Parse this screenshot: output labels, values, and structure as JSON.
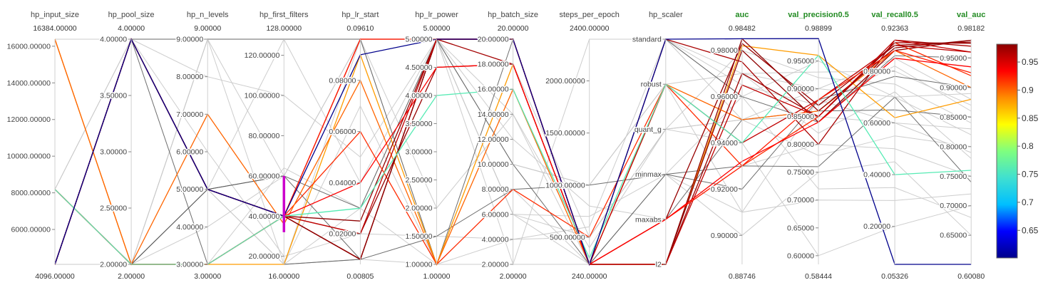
{
  "colors": {
    "metric_header": "#228b22",
    "param_header": "#444444",
    "gray_line": "#c8c8c8",
    "dark_line": "#555555",
    "brush": "#cc00cc"
  },
  "chart_data": {
    "type": "parallel_coordinates",
    "axes": [
      {
        "key": "hp_input_size",
        "label": "hp_input_size",
        "kind": "param",
        "min": 4096,
        "max": 16384,
        "top_label": "16384.00000",
        "bottom_label": "4096.00000",
        "ticks": [
          {
            "v": 6000,
            "t": "6000.00000"
          },
          {
            "v": 8000,
            "t": "8000.00000"
          },
          {
            "v": 10000,
            "t": "10000.00000"
          },
          {
            "v": 12000,
            "t": "12000.00000"
          },
          {
            "v": 14000,
            "t": "14000.00000"
          },
          {
            "v": 16000,
            "t": "16000.00000"
          }
        ]
      },
      {
        "key": "hp_pool_size",
        "label": "hp_pool_size",
        "kind": "param",
        "min": 2,
        "max": 4,
        "top_label": "4.00000",
        "bottom_label": "2.00000",
        "ticks": [
          {
            "v": 2,
            "t": "2.00000"
          },
          {
            "v": 2.5,
            "t": "2.50000"
          },
          {
            "v": 3,
            "t": "3.00000"
          },
          {
            "v": 3.5,
            "t": "3.50000"
          },
          {
            "v": 4,
            "t": "4.00000"
          }
        ]
      },
      {
        "key": "hp_n_levels",
        "label": "hp_n_levels",
        "kind": "param",
        "min": 3,
        "max": 9,
        "top_label": "9.00000",
        "bottom_label": "3.00000",
        "ticks": [
          {
            "v": 3,
            "t": "3.00000"
          },
          {
            "v": 4,
            "t": "4.00000"
          },
          {
            "v": 5,
            "t": "5.00000"
          },
          {
            "v": 6,
            "t": "6.00000"
          },
          {
            "v": 7,
            "t": "7.00000"
          },
          {
            "v": 8,
            "t": "8.00000"
          },
          {
            "v": 9,
            "t": "9.00000"
          }
        ]
      },
      {
        "key": "hp_first_filters",
        "label": "hp_first_filters",
        "kind": "param",
        "min": 16,
        "max": 128,
        "top_label": "128.00000",
        "bottom_label": "16.00000",
        "ticks": [
          {
            "v": 20,
            "t": "20.00000"
          },
          {
            "v": 40,
            "t": "40.00000"
          },
          {
            "v": 60,
            "t": "60.00000"
          },
          {
            "v": 80,
            "t": "80.00000"
          },
          {
            "v": 100,
            "t": "100.00000"
          },
          {
            "v": 120,
            "t": "120.00000"
          }
        ]
      },
      {
        "key": "hp_lr_start",
        "label": "hp_lr_start",
        "kind": "param",
        "min": 0.00805,
        "max": 0.0961,
        "top_label": "0.09610",
        "bottom_label": "0.00805",
        "ticks": [
          {
            "v": 0.02,
            "t": "0.02000"
          },
          {
            "v": 0.04,
            "t": "0.04000"
          },
          {
            "v": 0.06,
            "t": "0.06000"
          },
          {
            "v": 0.08,
            "t": "0.08000"
          }
        ]
      },
      {
        "key": "hp_lr_power",
        "label": "hp_lr_power",
        "kind": "param",
        "min": 1,
        "max": 5,
        "top_label": "5.00000",
        "bottom_label": "1.00000",
        "ticks": [
          {
            "v": 1,
            "t": "1.00000"
          },
          {
            "v": 1.5,
            "t": "1.50000"
          },
          {
            "v": 2,
            "t": "2.00000"
          },
          {
            "v": 2.5,
            "t": "2.50000"
          },
          {
            "v": 3,
            "t": "3.00000"
          },
          {
            "v": 3.5,
            "t": "3.50000"
          },
          {
            "v": 4,
            "t": "4.00000"
          },
          {
            "v": 4.5,
            "t": "4.50000"
          },
          {
            "v": 5,
            "t": "5.00000"
          }
        ]
      },
      {
        "key": "hp_batch_size",
        "label": "hp_batch_size",
        "kind": "param",
        "min": 2,
        "max": 20,
        "top_label": "20.00000",
        "bottom_label": "2.00000",
        "ticks": [
          {
            "v": 2,
            "t": "2.00000"
          },
          {
            "v": 4,
            "t": "4.00000"
          },
          {
            "v": 6,
            "t": "6.00000"
          },
          {
            "v": 8,
            "t": "8.00000"
          },
          {
            "v": 10,
            "t": "10.00000"
          },
          {
            "v": 12,
            "t": "12.00000"
          },
          {
            "v": 14,
            "t": "14.00000"
          },
          {
            "v": 16,
            "t": "16.00000"
          },
          {
            "v": 18,
            "t": "18.00000"
          },
          {
            "v": 20,
            "t": "20.00000"
          }
        ]
      },
      {
        "key": "steps_per_epoch",
        "label": "steps_per_epoch",
        "kind": "param",
        "min": 240,
        "max": 2400,
        "top_label": "2400.00000",
        "bottom_label": "240.00000",
        "ticks": [
          {
            "v": 500,
            "t": "500.00000"
          },
          {
            "v": 1000,
            "t": "1000.00000"
          },
          {
            "v": 1500,
            "t": "1500.00000"
          },
          {
            "v": 2000,
            "t": "2000.00000"
          }
        ]
      },
      {
        "key": "hp_scaler",
        "label": "hp_scaler",
        "kind": "category",
        "min": 0,
        "max": 5,
        "top_label": "",
        "bottom_label": "",
        "ticks": [
          {
            "v": 0,
            "t": "l2"
          },
          {
            "v": 1,
            "t": "maxabs"
          },
          {
            "v": 2,
            "t": "minmax"
          },
          {
            "v": 3,
            "t": "quant_g"
          },
          {
            "v": 4,
            "t": "robust"
          },
          {
            "v": 5,
            "t": "standard"
          }
        ]
      },
      {
        "key": "auc",
        "label": "auc",
        "kind": "metric",
        "min": 0.88746,
        "max": 0.98482,
        "top_label": "0.98482",
        "bottom_label": "0.88746",
        "ticks": [
          {
            "v": 0.9,
            "t": "0.90000"
          },
          {
            "v": 0.92,
            "t": "0.92000"
          },
          {
            "v": 0.94,
            "t": "0.94000"
          },
          {
            "v": 0.96,
            "t": "0.96000"
          },
          {
            "v": 0.98,
            "t": "0.98000"
          }
        ]
      },
      {
        "key": "val_precision0_5",
        "label": "val_precision0.5",
        "kind": "metric",
        "min": 0.58444,
        "max": 0.98899,
        "top_label": "0.98899",
        "bottom_label": "0.58444",
        "ticks": [
          {
            "v": 0.6,
            "t": "0.60000"
          },
          {
            "v": 0.65,
            "t": "0.65000"
          },
          {
            "v": 0.7,
            "t": "0.70000"
          },
          {
            "v": 0.75,
            "t": "0.75000"
          },
          {
            "v": 0.8,
            "t": "0.80000"
          },
          {
            "v": 0.85,
            "t": "0.85000"
          },
          {
            "v": 0.9,
            "t": "0.90000"
          },
          {
            "v": 0.95,
            "t": "0.95000"
          }
        ]
      },
      {
        "key": "val_recall0_5",
        "label": "val_recall0.5",
        "kind": "metric",
        "min": 0.05326,
        "max": 0.92363,
        "top_label": "0.92363",
        "bottom_label": "0.05326",
        "ticks": [
          {
            "v": 0.2,
            "t": "0.20000"
          },
          {
            "v": 0.4,
            "t": "0.40000"
          },
          {
            "v": 0.6,
            "t": "0.60000"
          },
          {
            "v": 0.8,
            "t": "0.80000"
          }
        ]
      },
      {
        "key": "val_auc",
        "label": "val_auc",
        "kind": "metric",
        "min": 0.6008,
        "max": 0.98182,
        "top_label": "0.98182",
        "bottom_label": "0.60080",
        "ticks": [
          {
            "v": 0.65,
            "t": "0.65000"
          },
          {
            "v": 0.7,
            "t": "0.70000"
          },
          {
            "v": 0.75,
            "t": "0.75000"
          },
          {
            "v": 0.8,
            "t": "0.80000"
          },
          {
            "v": 0.85,
            "t": "0.85000"
          },
          {
            "v": 0.9,
            "t": "0.90000"
          },
          {
            "v": 0.95,
            "t": "0.95000"
          }
        ]
      }
    ],
    "colorbar": {
      "min": 0.6008,
      "max": 0.98182,
      "ticks": [
        {
          "v": 0.65,
          "t": "0.65"
        },
        {
          "v": 0.7,
          "t": "0.7"
        },
        {
          "v": 0.75,
          "t": "0.75"
        },
        {
          "v": 0.8,
          "t": "0.8"
        },
        {
          "v": 0.85,
          "t": "0.85"
        },
        {
          "v": 0.9,
          "t": "0.9"
        },
        {
          "v": 0.95,
          "t": "0.95"
        }
      ],
      "colorscale": [
        "#00008b",
        "#0000ff",
        "#00bfff",
        "#40e0d0",
        "#7fff7f",
        "#ffff00",
        "#ff8c00",
        "#ff0000",
        "#8b0000"
      ]
    },
    "brush": {
      "axis": "hp_first_filters",
      "range": [
        32,
        60
      ]
    },
    "lines": [
      {
        "v": [
          16384,
          2,
          3,
          16,
          0.09,
          1,
          18,
          240,
          0,
          0.982,
          0.96,
          0.62,
          0.88
        ],
        "style": "color",
        "c": 0.88
      },
      {
        "v": [
          4096,
          4,
          5,
          40,
          0.025,
          5,
          20,
          240,
          0,
          0.98,
          0.84,
          0.88,
          0.98
        ],
        "style": "color",
        "c": 0.98
      },
      {
        "v": [
          8192,
          2,
          3,
          40,
          0.06,
          1,
          8,
          500,
          4,
          0.93,
          0.85,
          0.91,
          0.92
        ],
        "style": "color",
        "c": 0.92
      },
      {
        "v": [
          16384,
          2,
          7,
          36,
          0.08,
          1,
          16,
          240,
          4,
          0.95,
          0.86,
          0.88,
          0.9
        ],
        "style": "color",
        "c": 0.9
      },
      {
        "v": [
          4096,
          4,
          5,
          40,
          0.0961,
          5,
          20,
          240,
          4,
          0.94,
          0.88,
          0.9,
          0.96
        ],
        "style": "color",
        "c": 0.96
      },
      {
        "v": [
          4096,
          4,
          5,
          40,
          0.01,
          5,
          18,
          240,
          5,
          0.975,
          0.8,
          0.92,
          0.97
        ],
        "style": "color",
        "c": 0.97
      },
      {
        "v": [
          4096,
          4,
          5,
          40,
          0.01,
          5,
          20,
          240,
          0,
          0.97,
          0.85,
          0.91,
          0.975
        ],
        "style": "color",
        "c": 0.975
      },
      {
        "v": [
          4096,
          4,
          5,
          40,
          0.02,
          4.5,
          18,
          240,
          1,
          0.983,
          0.87,
          0.9,
          0.977
        ],
        "style": "color",
        "c": 0.977
      },
      {
        "v": [
          4096,
          4,
          5,
          40,
          0.01,
          5,
          20,
          240,
          0,
          0.985,
          0.86,
          0.89,
          0.98
        ],
        "style": "color",
        "c": 0.98
      },
      {
        "v": [
          4096,
          4,
          5,
          40,
          0.02,
          5,
          20,
          240,
          0,
          0.965,
          0.85,
          0.92,
          0.96
        ],
        "style": "color",
        "c": 0.96
      },
      {
        "v": [
          8192,
          2,
          3,
          40,
          0.0961,
          5,
          20,
          240,
          1,
          0.93,
          0.88,
          0.88,
          0.925
        ],
        "style": "color",
        "c": 0.925
      },
      {
        "v": [
          8192,
          2,
          3,
          40,
          0.04,
          4.5,
          18,
          240,
          1,
          0.932,
          0.84,
          0.85,
          0.935
        ],
        "style": "color",
        "c": 0.935
      },
      {
        "v": [
          8192,
          2,
          3,
          40,
          0.03,
          4,
          16,
          300,
          4,
          0.94,
          0.96,
          0.4,
          0.76
        ],
        "style": "color",
        "c": 0.76
      },
      {
        "v": [
          4096,
          4,
          5,
          40,
          0.09,
          5,
          20,
          240,
          5,
          0.985,
          0.99,
          0.05326,
          0.6008
        ],
        "style": "color",
        "c": 0.6008
      },
      {
        "v": [
          8192,
          2,
          3,
          16,
          0.01,
          1,
          2,
          240,
          5,
          0.95,
          0.9,
          0.85,
          0.88
        ],
        "style": "gray"
      },
      {
        "v": [
          16384,
          4,
          9,
          16,
          0.01,
          5,
          2,
          2400,
          5,
          0.96,
          0.95,
          0.7,
          0.82
        ],
        "style": "gray"
      },
      {
        "v": [
          8192,
          2,
          9,
          128,
          0.04,
          5,
          10,
          1000,
          4,
          0.91,
          0.88,
          0.6,
          0.79
        ],
        "style": "gray"
      },
      {
        "v": [
          8192,
          2,
          5,
          128,
          0.0961,
          1,
          18,
          500,
          3,
          0.94,
          0.6,
          0.2,
          0.7
        ],
        "style": "gray"
      },
      {
        "v": [
          4096,
          2,
          3,
          64,
          0.03,
          5,
          14,
          240,
          2,
          0.9,
          0.75,
          0.45,
          0.65
        ],
        "style": "gray"
      },
      {
        "v": [
          8192,
          4,
          5,
          16,
          0.0961,
          5,
          6,
          700,
          2,
          0.96,
          0.72,
          0.35,
          0.68
        ],
        "style": "gray"
      },
      {
        "v": [
          4096,
          2,
          3,
          40,
          0.02,
          1.5,
          4,
          500,
          3,
          0.98,
          0.92,
          0.75,
          0.84
        ],
        "style": "gray"
      },
      {
        "v": [
          8192,
          2,
          9,
          128,
          0.0961,
          5,
          20,
          240,
          5,
          0.965,
          0.87,
          0.82,
          0.86
        ],
        "style": "gray"
      },
      {
        "v": [
          16384,
          2,
          3,
          16,
          0.03,
          1,
          8,
          240,
          0,
          0.97,
          0.9,
          0.7,
          0.89
        ],
        "style": "gray"
      },
      {
        "v": [
          4096,
          4,
          8,
          100,
          0.05,
          5,
          12,
          800,
          1,
          0.93,
          0.8,
          0.5,
          0.75
        ],
        "style": "gray"
      },
      {
        "v": [
          8192,
          2,
          4,
          60,
          0.0961,
          2,
          14,
          400,
          3,
          0.95,
          0.78,
          0.55,
          0.8
        ],
        "style": "gray"
      },
      {
        "v": [
          4096,
          4,
          6,
          20,
          0.02,
          5,
          6,
          240,
          2,
          0.91,
          0.7,
          0.3,
          0.72
        ],
        "style": "gray"
      },
      {
        "v": [
          8192,
          2,
          3,
          16,
          0.07,
          1,
          4,
          600,
          5,
          0.97,
          0.93,
          0.8,
          0.87
        ],
        "style": "gray"
      },
      {
        "v": [
          4096,
          2,
          9,
          60,
          0.0961,
          5,
          10,
          1000,
          4,
          0.97,
          0.82,
          0.72,
          0.78
        ],
        "style": "gray"
      },
      {
        "v": [
          8192,
          4,
          5,
          16,
          0.01,
          5,
          6,
          500,
          3,
          0.95,
          0.85,
          0.6,
          0.83
        ],
        "style": "gray"
      },
      {
        "v": [
          4096,
          4,
          9,
          128,
          0.0961,
          1,
          20,
          240,
          2,
          0.93,
          0.76,
          0.7,
          0.74
        ],
        "style": "dark"
      },
      {
        "v": [
          8192,
          2,
          5,
          60,
          0.03,
          5,
          10,
          240,
          1,
          0.95,
          0.86,
          0.65,
          0.85
        ],
        "style": "dark"
      },
      {
        "v": [
          4096,
          4,
          3,
          16,
          0.01,
          1.5,
          8,
          1000,
          2,
          0.92,
          0.88,
          0.78,
          0.9
        ],
        "style": "dark"
      },
      {
        "v": [
          8192,
          2,
          5,
          60,
          0.01,
          5,
          18,
          240,
          5,
          0.96,
          0.84,
          0.86,
          0.95
        ],
        "style": "dark"
      }
    ]
  }
}
